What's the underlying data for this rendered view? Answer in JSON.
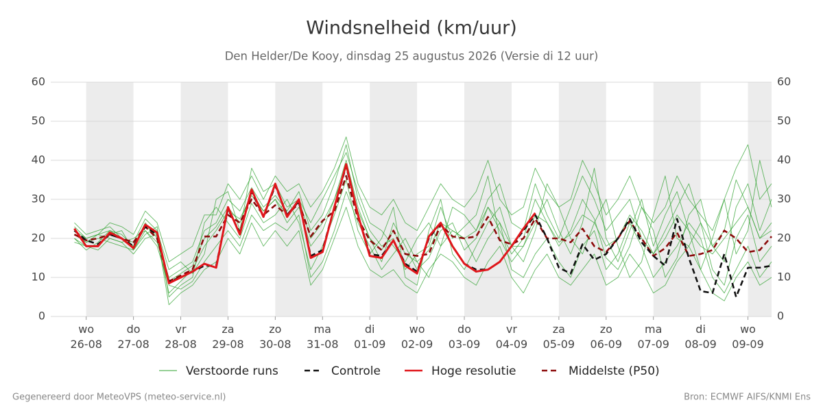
{
  "chart_data": {
    "type": "line",
    "title": "Windsnelheid (km/uur)",
    "subtitle": "Den Helder/De Kooy, dinsdag 25 augustus 2026 (Versie di 12 uur)",
    "footer_left": "Gegenereerd door MeteoVPS (meteo-service.nl)",
    "footer_right": "Bron: ECMWF AIFS/KNMI Ens",
    "xlim": [
      -0.75,
      14.5
    ],
    "xticks": [
      {
        "value": 0,
        "label": "wo\n26-08"
      },
      {
        "value": 1,
        "label": "do\n27-08"
      },
      {
        "value": 2,
        "label": "vr\n28-08"
      },
      {
        "value": 3,
        "label": "za\n29-08"
      },
      {
        "value": 4,
        "label": "zo\n30-08"
      },
      {
        "value": 5,
        "label": "ma\n31-08"
      },
      {
        "value": 6,
        "label": "di\n01-09"
      },
      {
        "value": 7,
        "label": "wo\n02-09"
      },
      {
        "value": 8,
        "label": "do\n03-09"
      },
      {
        "value": 9,
        "label": "vr\n04-09"
      },
      {
        "value": 10,
        "label": "za\n05-09"
      },
      {
        "value": 11,
        "label": "zo\n06-09"
      },
      {
        "value": 12,
        "label": "ma\n07-09"
      },
      {
        "value": 13,
        "label": "di\n08-09"
      },
      {
        "value": 14,
        "label": "wo\n09-09"
      }
    ],
    "ylim": [
      0,
      60
    ],
    "yticks": [
      0,
      10,
      20,
      30,
      40,
      50,
      60
    ],
    "grid": true,
    "alternate_day_shading": true,
    "x": [
      -0.25,
      0,
      0.25,
      0.5,
      0.75,
      1,
      1.25,
      1.5,
      1.75,
      2,
      2.25,
      2.5,
      2.75,
      3,
      3.25,
      3.5,
      3.75,
      4,
      4.25,
      4.5,
      4.75,
      5,
      5.25,
      5.5,
      5.75,
      6,
      6.25,
      6.5,
      6.75,
      7,
      7.25,
      7.5,
      7.75,
      8,
      8.25,
      8.5,
      8.75,
      9,
      9.25,
      9.5,
      9.75,
      10,
      10.25,
      10.5,
      10.75,
      11,
      11.25,
      11.5,
      11.75,
      12,
      12.25,
      12.5,
      12.75,
      13,
      13.25,
      13.5,
      13.75,
      14,
      14.25,
      14.5
    ],
    "ensemble": {
      "name": "Verstoorde runs",
      "color": "#2ca02c",
      "members": [
        [
          20,
          17,
          19,
          22,
          21,
          18,
          24,
          20,
          6,
          9,
          12,
          18,
          22,
          27,
          25,
          31,
          27,
          30,
          24,
          28,
          18,
          22,
          30,
          40,
          28,
          20,
          14,
          24,
          18,
          12,
          15,
          22,
          24,
          17,
          20,
          28,
          22,
          16,
          20,
          30,
          24,
          18,
          22,
          30,
          25,
          15,
          12,
          18,
          28,
          22,
          10,
          15,
          26,
          30,
          18,
          22,
          35,
          28,
          20,
          24
        ],
        [
          23,
          20,
          21,
          20,
          19,
          20,
          22,
          19,
          10,
          12,
          14,
          22,
          24,
          30,
          27,
          33,
          28,
          31,
          27,
          32,
          22,
          26,
          34,
          44,
          30,
          22,
          18,
          20,
          12,
          16,
          18,
          28,
          20,
          23,
          26,
          36,
          20,
          14,
          18,
          24,
          30,
          22,
          16,
          24,
          38,
          20,
          14,
          22,
          30,
          18,
          26,
          32,
          22,
          12,
          20,
          30,
          16,
          22,
          40,
          28
        ],
        [
          19,
          18,
          18,
          21,
          22,
          17,
          21,
          23,
          5,
          8,
          10,
          24,
          28,
          24,
          20,
          29,
          24,
          26,
          30,
          24,
          12,
          18,
          26,
          35,
          22,
          16,
          20,
          28,
          10,
          8,
          22,
          30,
          16,
          12,
          18,
          24,
          28,
          18,
          14,
          22,
          34,
          28,
          20,
          16,
          24,
          30,
          18,
          10,
          14,
          26,
          36,
          20,
          18,
          24,
          12,
          8,
          20,
          26,
          14,
          18
        ],
        [
          24,
          21,
          22,
          23,
          20,
          19,
          25,
          22,
          12,
          14,
          11,
          16,
          30,
          32,
          22,
          38,
          32,
          34,
          28,
          30,
          24,
          30,
          36,
          42,
          32,
          24,
          22,
          18,
          14,
          20,
          24,
          18,
          28,
          26,
          22,
          30,
          34,
          24,
          22,
          34,
          26,
          20,
          28,
          36,
          30,
          22,
          26,
          30,
          20,
          16,
          22,
          28,
          34,
          24,
          18,
          14,
          28,
          34,
          22,
          30
        ],
        [
          21,
          19,
          20,
          19,
          18,
          17,
          22,
          18,
          8,
          7,
          9,
          14,
          18,
          22,
          18,
          26,
          22,
          24,
          22,
          26,
          10,
          14,
          22,
          32,
          24,
          18,
          12,
          16,
          20,
          14,
          10,
          18,
          22,
          20,
          14,
          20,
          24,
          12,
          10,
          16,
          20,
          14,
          10,
          18,
          22,
          12,
          16,
          24,
          18,
          10,
          14,
          18,
          24,
          20,
          10,
          6,
          12,
          18,
          10,
          14
        ],
        [
          22,
          20,
          21,
          24,
          23,
          21,
          27,
          24,
          14,
          16,
          18,
          26,
          26,
          34,
          30,
          36,
          30,
          36,
          32,
          34,
          28,
          32,
          38,
          46,
          34,
          28,
          26,
          30,
          24,
          22,
          28,
          34,
          30,
          28,
          32,
          40,
          30,
          26,
          28,
          38,
          32,
          28,
          30,
          40,
          34,
          26,
          30,
          36,
          28,
          24,
          28,
          36,
          30,
          26,
          22,
          30,
          38,
          44,
          30,
          34
        ],
        [
          20,
          18,
          17,
          20,
          19,
          16,
          20,
          21,
          3,
          6,
          8,
          12,
          14,
          20,
          16,
          24,
          18,
          22,
          18,
          22,
          8,
          12,
          20,
          28,
          18,
          12,
          10,
          12,
          8,
          6,
          12,
          16,
          14,
          10,
          8,
          14,
          18,
          10,
          6,
          12,
          16,
          10,
          8,
          12,
          16,
          8,
          10,
          16,
          12,
          6,
          8,
          14,
          18,
          12,
          6,
          4,
          10,
          14,
          8,
          10
        ],
        [
          21,
          19,
          21,
          22,
          20,
          18,
          23,
          21,
          9,
          11,
          13,
          20,
          23,
          28,
          24,
          32,
          27,
          30,
          26,
          30,
          20,
          24,
          30,
          38,
          27,
          20,
          17,
          22,
          16,
          14,
          17,
          24,
          22,
          20,
          22,
          28,
          24,
          18,
          18,
          26,
          24,
          19,
          21,
          26,
          24,
          18,
          20,
          26,
          22,
          16,
          20,
          26,
          22,
          18,
          16,
          20,
          24,
          28,
          20,
          22
        ]
      ]
    },
    "series": [
      {
        "name": "Controle",
        "color": "#111111",
        "dashed": true,
        "values": [
          22,
          19.5,
          18.5,
          21,
          20,
          18,
          23,
          21,
          9,
          10,
          11.5,
          13,
          13,
          27.5,
          21.5,
          32,
          25.5,
          33.5,
          26,
          29.5,
          15.5,
          17,
          28,
          38.5,
          26,
          16,
          15.5,
          19.5,
          13.5,
          11.5,
          20,
          24,
          18,
          13.5,
          12,
          12,
          14,
          18,
          22,
          26,
          20,
          12.5,
          11,
          18.5,
          14.5,
          16,
          20,
          25,
          19,
          15.5,
          13,
          25,
          15,
          6.5,
          6,
          16,
          5,
          12.5,
          12.5,
          13
        ]
      },
      {
        "name": "Hoge resolutie",
        "color": "#e0161b",
        "dashed": false,
        "values": [
          22.5,
          18,
          18,
          21.5,
          20,
          17.5,
          23.5,
          21.5,
          8.5,
          10,
          11.5,
          13.5,
          12.5,
          28,
          21,
          32.5,
          25.5,
          34,
          25.5,
          30,
          15,
          16.5,
          28,
          39,
          26,
          15.5,
          15,
          19.5,
          13,
          11,
          20.5,
          24,
          18,
          13.5,
          11.5,
          12,
          14,
          18,
          22.5,
          26.5,
          null,
          null,
          null,
          null,
          null,
          null,
          null,
          null,
          null,
          null,
          null,
          null,
          null,
          null,
          null,
          null,
          null,
          null,
          null,
          null
        ]
      },
      {
        "name": "Middelste (P50)",
        "color": "#8b0a0a",
        "dashed": true,
        "values": [
          21,
          19.5,
          20,
          21,
          20,
          19,
          23,
          20,
          9,
          10.5,
          12,
          20.5,
          20.5,
          26,
          24,
          30,
          26,
          28.5,
          26,
          29,
          20.5,
          24.5,
          27,
          36,
          25,
          19.5,
          17,
          22,
          16,
          15.5,
          16,
          23.5,
          20.5,
          20,
          20.5,
          25.5,
          19.5,
          18.5,
          20,
          25,
          20,
          20,
          19,
          22.5,
          18,
          16.5,
          20,
          24.5,
          20,
          15.5,
          17.5,
          21.5,
          15.5,
          16,
          17,
          22,
          20,
          16.5,
          17,
          20.5
        ]
      }
    ]
  }
}
